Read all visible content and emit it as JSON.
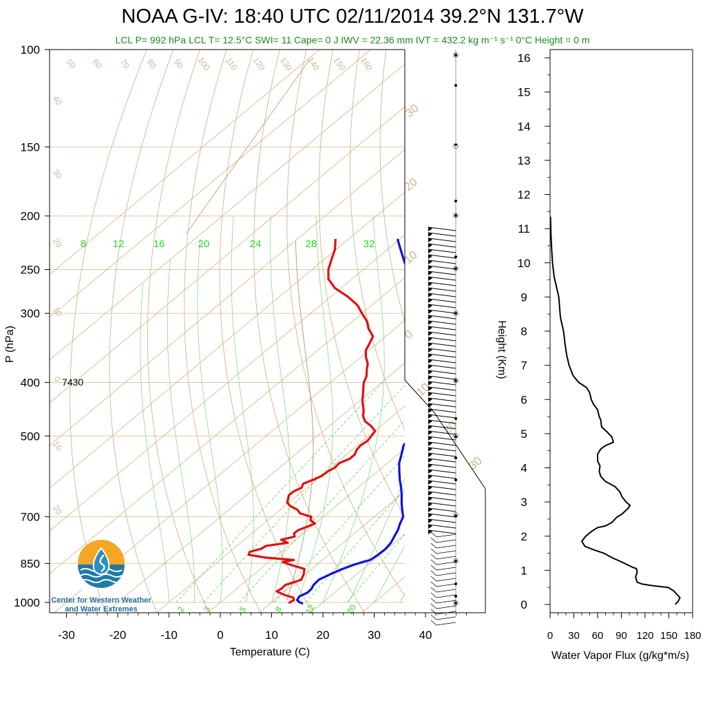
{
  "header": {
    "title": "NOAA G-IV: 18:40 UTC 02/11/2014  39.2°N 131.7°W",
    "subtitle": "LCL P= 992 hPa  LCL T= 12.5°C  SWI= 11  Cape= 0 J  IWV = 22.36 mm  IVT = 432.2 kg m⁻¹ s⁻¹  0°C Height = 0 m"
  },
  "logo": {
    "line1": "Center for Western Weather",
    "line2": "and Water Extremes"
  },
  "chart_data": [
    {
      "type": "line",
      "subtype": "skew-t",
      "xlabel": "Temperature (C)",
      "ylabel": "P (hPa)",
      "xticks": [
        -30,
        -20,
        -10,
        0,
        10,
        20,
        30,
        40
      ],
      "yticks": [
        100,
        150,
        200,
        250,
        300,
        400,
        500,
        700,
        850,
        1000
      ],
      "xlim": [
        -34,
        50
      ],
      "ylim": [
        1050,
        100
      ],
      "height_annotation": "7430",
      "mixing_ratio_labels_top": [
        "8",
        "12",
        "16",
        "20",
        "24",
        "28",
        "32"
      ],
      "mixing_ratio_labels_bottom": [
        "2",
        "3",
        "5",
        "8",
        "12",
        "20"
      ],
      "dry_adiabat_labels_top": [
        "50",
        "60",
        "70",
        "80",
        "90",
        "100",
        "110",
        "120",
        "130",
        "140",
        "150",
        "160"
      ],
      "dry_adiabat_labels_left": [
        "40",
        "30",
        "20",
        "10",
        "0",
        "10",
        "20"
      ],
      "moist_adiabat_labels_right": [
        "30",
        "20",
        "10",
        "0",
        "10",
        "20",
        "30"
      ],
      "series": [
        {
          "role": "temperature",
          "color": "#1010e0",
          "points": [
            [
              1005,
              16.4
            ],
            [
              1000,
              15.5
            ],
            [
              990,
              14.4
            ],
            [
              975,
              14.0
            ],
            [
              960,
              14.7
            ],
            [
              945,
              14.6
            ],
            [
              930,
              14.1
            ],
            [
              910,
              13.9
            ],
            [
              890,
              14.8
            ],
            [
              870,
              16.0
            ],
            [
              855,
              17.2
            ],
            [
              845,
              18.3
            ],
            [
              838,
              19.3
            ],
            [
              820,
              19.6
            ],
            [
              800,
              19.7
            ],
            [
              780,
              19.3
            ],
            [
              760,
              18.5
            ],
            [
              740,
              17.7
            ],
            [
              720,
              16.6
            ],
            [
              700,
              15.6
            ],
            [
              680,
              13.8
            ],
            [
              660,
              12.0
            ],
            [
              640,
              10.3
            ],
            [
              620,
              8.4
            ],
            [
              600,
              6.3
            ],
            [
              580,
              4.3
            ],
            [
              560,
              2.3
            ],
            [
              540,
              0.7
            ],
            [
              520,
              -1.0
            ],
            [
              505,
              -1.6
            ],
            [
              495,
              -1.3
            ],
            [
              485,
              -2.4
            ],
            [
              470,
              -3.5
            ],
            [
              460,
              -4.5
            ],
            [
              450,
              -5.6
            ],
            [
              440,
              -6.8
            ],
            [
              430,
              -8.4
            ],
            [
              420,
              -9.8
            ],
            [
              410,
              -11.3
            ],
            [
              400,
              -12.1
            ],
            [
              385,
              -14.2
            ],
            [
              370,
              -16.4
            ],
            [
              355,
              -18.6
            ],
            [
              340,
              -20.9
            ],
            [
              325,
              -23.5
            ],
            [
              310,
              -26.5
            ],
            [
              300,
              -28.3
            ],
            [
              290,
              -30.3
            ],
            [
              280,
              -32.6
            ],
            [
              270,
              -35.5
            ],
            [
              260,
              -38.4
            ],
            [
              250,
              -41.4
            ],
            [
              240,
              -44.4
            ],
            [
              230,
              -47.4
            ],
            [
              220,
              -50.5
            ]
          ]
        },
        {
          "role": "dewpoint",
          "color": "#e01010",
          "points": [
            [
              1005,
              13.8
            ],
            [
              1000,
              13.5
            ],
            [
              990,
              13.8
            ],
            [
              980,
              13.1
            ],
            [
              970,
              10.9
            ],
            [
              955,
              8.4
            ],
            [
              945,
              8.7
            ],
            [
              930,
              8.6
            ],
            [
              910,
              10.5
            ],
            [
              890,
              9.7
            ],
            [
              870,
              8.6
            ],
            [
              855,
              4.9
            ],
            [
              845,
              2.7
            ],
            [
              838,
              4.4
            ],
            [
              830,
              -1.6
            ],
            [
              820,
              -5.6
            ],
            [
              810,
              -6.1
            ],
            [
              800,
              -4.6
            ],
            [
              790,
              -4.3
            ],
            [
              780,
              -0.8
            ],
            [
              770,
              -2.8
            ],
            [
              760,
              -0.9
            ],
            [
              750,
              -1.8
            ],
            [
              740,
              -1.7
            ],
            [
              730,
              -0.8
            ],
            [
              720,
              0.0
            ],
            [
              710,
              -1.7
            ],
            [
              700,
              -2.3
            ],
            [
              690,
              -5.3
            ],
            [
              680,
              -6.6
            ],
            [
              670,
              -8.8
            ],
            [
              660,
              -10.3
            ],
            [
              650,
              -11.0
            ],
            [
              640,
              -11.7
            ],
            [
              630,
              -11.7
            ],
            [
              620,
              -11.0
            ],
            [
              610,
              -11.6
            ],
            [
              600,
              -10.6
            ],
            [
              590,
              -9.8
            ],
            [
              580,
              -9.7
            ],
            [
              570,
              -9.2
            ],
            [
              560,
              -9.4
            ],
            [
              550,
              -8.4
            ],
            [
              540,
              -8.4
            ],
            [
              530,
              -9.1
            ],
            [
              520,
              -9.4
            ],
            [
              510,
              -9.1
            ],
            [
              500,
              -9.5
            ],
            [
              490,
              -9.9
            ],
            [
              480,
              -11.8
            ],
            [
              470,
              -14.2
            ],
            [
              460,
              -15.8
            ],
            [
              450,
              -16.9
            ],
            [
              440,
              -18.3
            ],
            [
              430,
              -19.7
            ],
            [
              420,
              -20.9
            ],
            [
              410,
              -22.2
            ],
            [
              400,
              -23.5
            ],
            [
              390,
              -24.4
            ],
            [
              380,
              -25.8
            ],
            [
              370,
              -27.1
            ],
            [
              360,
              -29.0
            ],
            [
              350,
              -30.6
            ],
            [
              340,
              -31.5
            ],
            [
              330,
              -32.5
            ],
            [
              320,
              -35.1
            ],
            [
              310,
              -37.2
            ],
            [
              300,
              -40.0
            ],
            [
              290,
              -42.8
            ],
            [
              280,
              -46.6
            ],
            [
              270,
              -51.2
            ],
            [
              260,
              -54.6
            ],
            [
              250,
              -56.8
            ],
            [
              240,
              -58.5
            ],
            [
              230,
              -60.2
            ],
            [
              220,
              -62.6
            ]
          ]
        }
      ]
    },
    {
      "type": "line",
      "xlabel": "Water Vapor Flux (g/kg*m/s)",
      "ylabel": "Height (Km)",
      "xticks": [
        0,
        30,
        60,
        90,
        120,
        150,
        180
      ],
      "yticks": [
        0,
        1,
        2,
        3,
        4,
        5,
        6,
        7,
        8,
        9,
        10,
        11,
        12,
        13,
        14,
        15,
        16
      ],
      "xlim": [
        0,
        180
      ],
      "ylim": [
        -0.2,
        16.4
      ],
      "series": [
        {
          "role": "water-vapor-flux",
          "color": "#000000",
          "points": [
            [
              158,
              0.0
            ],
            [
              162,
              0.1
            ],
            [
              164,
              0.2
            ],
            [
              160,
              0.3
            ],
            [
              156,
              0.4
            ],
            [
              149,
              0.5
            ],
            [
              130,
              0.55
            ],
            [
              116,
              0.6
            ],
            [
              110,
              0.65
            ],
            [
              108,
              0.8
            ],
            [
              110,
              0.95
            ],
            [
              109,
              1.05
            ],
            [
              103,
              1.1
            ],
            [
              90,
              1.25
            ],
            [
              80,
              1.35
            ],
            [
              68,
              1.5
            ],
            [
              55,
              1.6
            ],
            [
              44,
              1.7
            ],
            [
              40,
              1.85
            ],
            [
              45,
              2.0
            ],
            [
              53,
              2.15
            ],
            [
              60,
              2.25
            ],
            [
              70,
              2.3
            ],
            [
              78,
              2.4
            ],
            [
              84,
              2.55
            ],
            [
              91,
              2.65
            ],
            [
              98,
              2.8
            ],
            [
              101,
              2.9
            ],
            [
              96,
              3.0
            ],
            [
              91,
              3.15
            ],
            [
              88,
              3.3
            ],
            [
              82,
              3.45
            ],
            [
              70,
              3.6
            ],
            [
              64,
              3.75
            ],
            [
              62,
              3.9
            ],
            [
              63,
              4.05
            ],
            [
              60,
              4.2
            ],
            [
              60,
              4.4
            ],
            [
              64,
              4.55
            ],
            [
              70,
              4.65
            ],
            [
              80,
              4.75
            ],
            [
              78,
              4.9
            ],
            [
              72,
              5.05
            ],
            [
              65,
              5.2
            ],
            [
              64,
              5.4
            ],
            [
              62,
              5.5
            ],
            [
              60,
              5.7
            ],
            [
              55,
              5.85
            ],
            [
              52,
              6.0
            ],
            [
              50,
              6.2
            ],
            [
              46,
              6.35
            ],
            [
              36,
              6.5
            ],
            [
              29,
              6.7
            ],
            [
              24,
              7.0
            ],
            [
              21,
              7.3
            ],
            [
              19,
              7.6
            ],
            [
              17,
              8.0
            ],
            [
              13,
              8.4
            ],
            [
              12,
              8.7
            ],
            [
              11,
              9.0
            ],
            [
              8,
              9.3
            ],
            [
              5,
              9.6
            ],
            [
              3,
              10.0
            ],
            [
              2,
              10.4
            ],
            [
              1,
              10.9
            ],
            [
              0.5,
              11.35
            ]
          ]
        }
      ]
    }
  ]
}
